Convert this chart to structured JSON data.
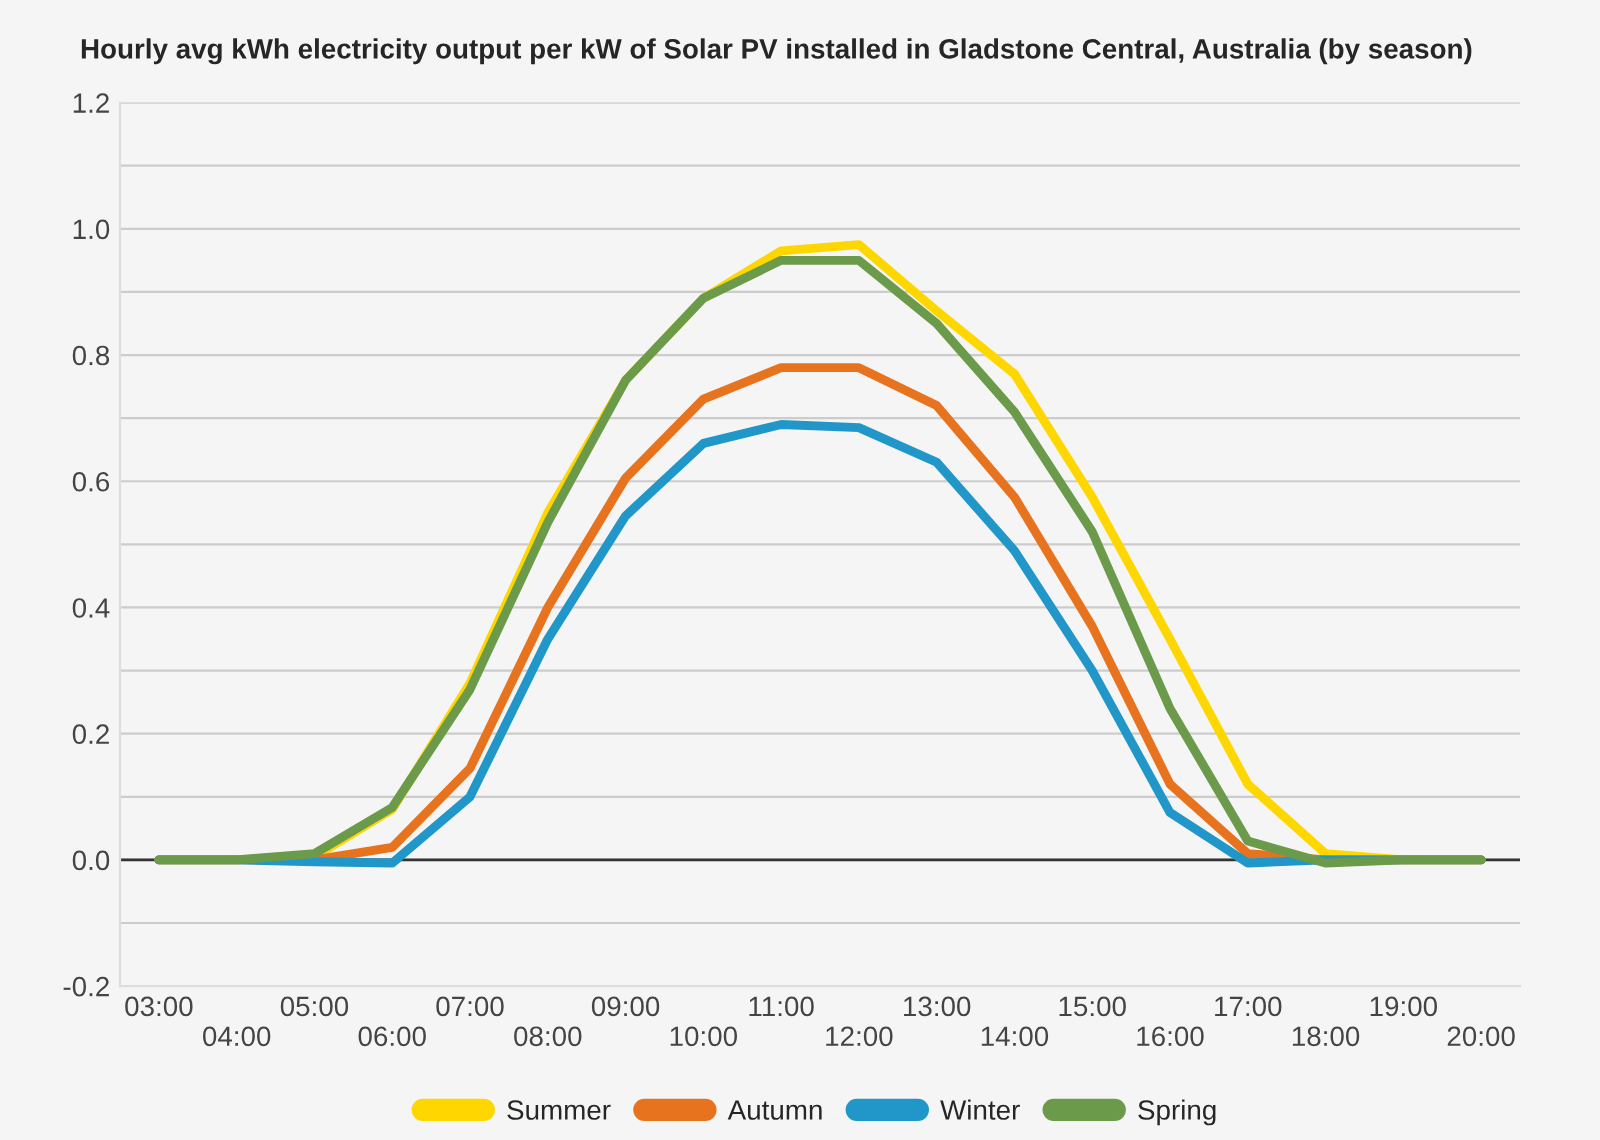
{
  "chart_data": {
    "type": "line",
    "title": "Hourly avg kWh electricity output per kW of Solar PV installed in Gladstone Central, Australia (by season)",
    "categories": [
      "03:00",
      "04:00",
      "05:00",
      "06:00",
      "07:00",
      "08:00",
      "09:00",
      "10:00",
      "11:00",
      "12:00",
      "13:00",
      "14:00",
      "15:00",
      "16:00",
      "17:00",
      "18:00",
      "19:00",
      "20:00"
    ],
    "series": [
      {
        "name": "Summer",
        "color": "#ffd700",
        "values": [
          0,
          0,
          0.005,
          0.08,
          0.28,
          0.55,
          0.76,
          0.89,
          0.965,
          0.975,
          0.87,
          0.77,
          0.575,
          0.35,
          0.12,
          0.01,
          0,
          0
        ]
      },
      {
        "name": "Autumn",
        "color": "#e8731e",
        "values": [
          0,
          0,
          0,
          0.02,
          0.145,
          0.4,
          0.605,
          0.73,
          0.78,
          0.78,
          0.72,
          0.575,
          0.37,
          0.12,
          0.01,
          0,
          0,
          0
        ]
      },
      {
        "name": "Winter",
        "color": "#2196c8",
        "values": [
          0,
          0,
          -0.003,
          -0.005,
          0.1,
          0.35,
          0.545,
          0.66,
          0.69,
          0.685,
          0.63,
          0.49,
          0.3,
          0.075,
          -0.005,
          0,
          0,
          0
        ]
      },
      {
        "name": "Spring",
        "color": "#6b9a4b",
        "values": [
          0,
          0,
          0.01,
          0.083,
          0.27,
          0.535,
          0.76,
          0.89,
          0.95,
          0.95,
          0.85,
          0.71,
          0.52,
          0.24,
          0.03,
          -0.005,
          0,
          0
        ]
      }
    ],
    "ylim": [
      -0.2,
      1.2
    ],
    "yticks": [
      -0.2,
      {
        "value": -0.1,
        "label": null
      },
      {
        "value": 0,
        "label": "0.0"
      },
      {
        "value": 0.1,
        "label": null
      },
      0.2,
      {
        "value": 0.3,
        "label": null
      },
      0.4,
      {
        "value": 0.5,
        "label": null
      },
      0.6,
      {
        "value": 0.7,
        "label": null
      },
      0.8,
      {
        "value": 0.9,
        "label": null
      },
      {
        "value": 1,
        "label": "1.0"
      },
      {
        "value": 1.1,
        "label": null
      },
      1.2
    ],
    "ref_lines": [
      {
        "axis": "y",
        "value": 0,
        "color": "#333333"
      }
    ],
    "grid": "y",
    "legend": "bottom",
    "marker": "none",
    "line_style": "solid"
  }
}
